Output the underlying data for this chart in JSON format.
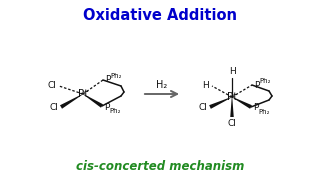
{
  "title": "Oxidative Addition",
  "title_color": "#0000CC",
  "subtitle": "cis-concerted mechanism",
  "subtitle_color": "#228B22",
  "bg_color": "#FFFFFF",
  "arrow_color": "#666666",
  "line_color": "#111111",
  "h2_label": "H₂",
  "figsize": [
    3.2,
    1.8
  ],
  "dpi": 100,
  "title_fontsize": 10.5,
  "subtitle_fontsize": 8.5,
  "label_fontsize": 6.5,
  "pt_fontsize": 7.5
}
